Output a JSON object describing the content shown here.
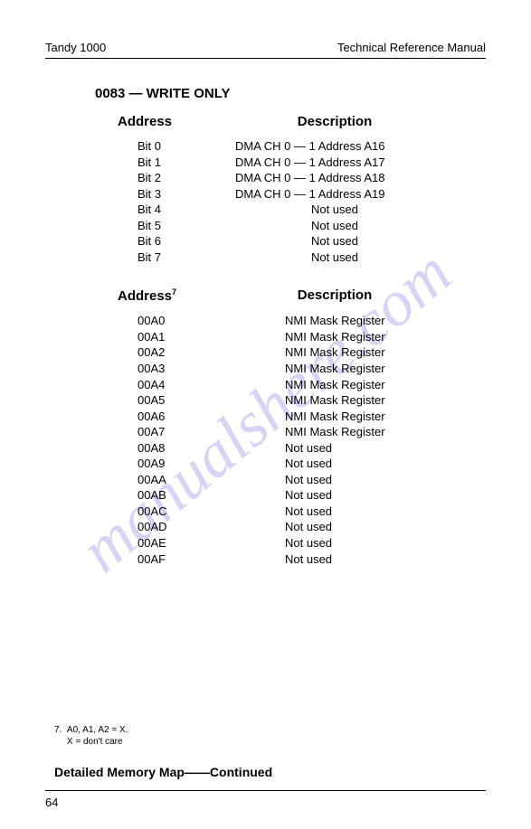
{
  "header": {
    "left": "Tandy 1000",
    "right": "Technical Reference Manual"
  },
  "section_title": "0083 — WRITE ONLY",
  "table1": {
    "col1_header": "Address",
    "col2_header": "Description",
    "rows": [
      {
        "addr": "Bit 0",
        "desc": "DMA CH 0 — 1 Address A16",
        "centered": false
      },
      {
        "addr": "Bit 1",
        "desc": "DMA CH 0 — 1 Address A17",
        "centered": false
      },
      {
        "addr": "Bit 2",
        "desc": "DMA CH 0 — 1 Address A18",
        "centered": false
      },
      {
        "addr": "Bit 3",
        "desc": "DMA CH 0 — 1 Address A19",
        "centered": false
      },
      {
        "addr": "Bit 4",
        "desc": "Not used",
        "centered": true
      },
      {
        "addr": "Bit 5",
        "desc": "Not used",
        "centered": true
      },
      {
        "addr": "Bit 6",
        "desc": "Not used",
        "centered": true
      },
      {
        "addr": "Bit 7",
        "desc": "Not used",
        "centered": true
      }
    ]
  },
  "table2": {
    "col1_header": "Address",
    "col1_sup": "7",
    "col2_header": "Description",
    "rows": [
      {
        "addr": "00A0",
        "desc": "NMI Mask Register"
      },
      {
        "addr": "00A1",
        "desc": "NMI Mask Register"
      },
      {
        "addr": "00A2",
        "desc": "NMI Mask Register"
      },
      {
        "addr": "00A3",
        "desc": "NMI Mask Register"
      },
      {
        "addr": "00A4",
        "desc": "NMI Mask Register"
      },
      {
        "addr": "00A5",
        "desc": "NMI Mask Register"
      },
      {
        "addr": "00A6",
        "desc": "NMI Mask Register"
      },
      {
        "addr": "00A7",
        "desc": "NMI Mask Register"
      },
      {
        "addr": "00A8",
        "desc": "Not used"
      },
      {
        "addr": "00A9",
        "desc": "Not used"
      },
      {
        "addr": "00AA",
        "desc": "Not used"
      },
      {
        "addr": "00AB",
        "desc": "Not used"
      },
      {
        "addr": "00AC",
        "desc": "Not used"
      },
      {
        "addr": "00AD",
        "desc": "Not used"
      },
      {
        "addr": "00AE",
        "desc": "Not used"
      },
      {
        "addr": "00AF",
        "desc": "Not used"
      }
    ]
  },
  "footnote": {
    "num": "7.",
    "line1": "A0, A1, A2 = X.",
    "line2": "X = don't care"
  },
  "footer_title": "Detailed Memory Map——Continued",
  "page_num": "64",
  "watermark": "manualshere.com"
}
